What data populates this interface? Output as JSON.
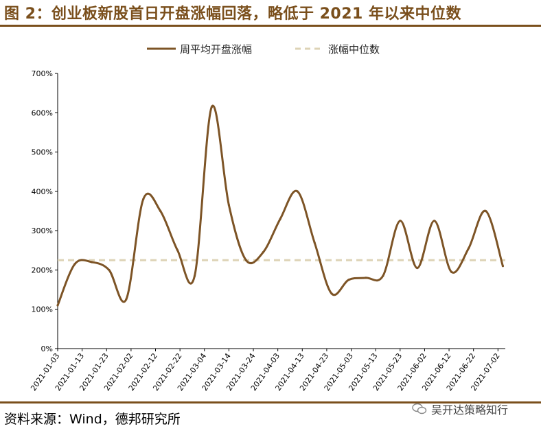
{
  "title": "图 2：创业板新股首日开盘涨幅回落，略低于 2021 年以来中位数",
  "source": "资料来源：Wind，德邦研究所",
  "watermark": "吴开达策略知行",
  "colors": {
    "line": "#7d5426",
    "median": "#ddd3b6",
    "frame": "#7a4f1c"
  },
  "chart_data": {
    "type": "line",
    "title": "",
    "xlabel": "",
    "ylabel": "",
    "ylim": [
      0,
      700
    ],
    "y_ticks": [
      0,
      100,
      200,
      300,
      400,
      500,
      600,
      700
    ],
    "y_tick_labels": [
      "0%",
      "100%",
      "200%",
      "300%",
      "400%",
      "500%",
      "600%",
      "700%"
    ],
    "x_range": [
      "2021-01-03",
      "2021-07-05"
    ],
    "x_ticks": [
      "2021-01-03",
      "2021-01-13",
      "2021-01-23",
      "2021-02-02",
      "2021-02-12",
      "2021-02-22",
      "2021-03-04",
      "2021-03-14",
      "2021-03-24",
      "2021-04-03",
      "2021-04-13",
      "2021-04-23",
      "2021-05-03",
      "2021-05-13",
      "2021-05-23",
      "2021-06-02",
      "2021-06-12",
      "2021-06-22",
      "2021-07-02"
    ],
    "legend_position": "top",
    "grid": false,
    "series": [
      {
        "name": "周平均开盘涨幅",
        "x": [
          "2021-01-03",
          "2021-01-10",
          "2021-01-17",
          "2021-01-24",
          "2021-01-31",
          "2021-02-07",
          "2021-02-14",
          "2021-02-21",
          "2021-02-28",
          "2021-03-07",
          "2021-03-14",
          "2021-03-21",
          "2021-03-28",
          "2021-04-04",
          "2021-04-11",
          "2021-04-18",
          "2021-04-25",
          "2021-05-02",
          "2021-05-09",
          "2021-05-16",
          "2021-05-23",
          "2021-05-30",
          "2021-06-06",
          "2021-06-13",
          "2021-06-20",
          "2021-06-27",
          "2021-07-04"
        ],
        "values": [
          110,
          215,
          220,
          200,
          125,
          380,
          350,
          250,
          185,
          615,
          365,
          225,
          245,
          330,
          400,
          270,
          140,
          175,
          180,
          185,
          325,
          205,
          325,
          195,
          255,
          350,
          210
        ]
      },
      {
        "name": "涨幅中位数",
        "x": [
          "2021-01-03",
          "2021-07-05"
        ],
        "values": [
          225,
          225
        ]
      }
    ]
  }
}
